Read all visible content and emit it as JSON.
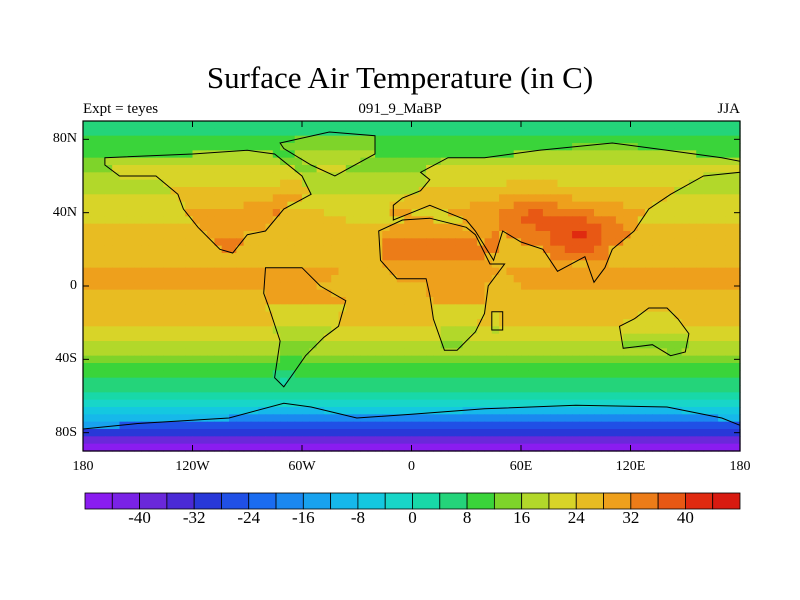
{
  "title": "Surface Air Temperature (in C)",
  "subtitle_left": "Expt = teyes",
  "subtitle_center": "091_9_MaBP",
  "subtitle_right": "JJA",
  "chart_data": {
    "type": "heatmap",
    "projection": "cylindrical-equidistant",
    "xlim": [
      -180,
      180
    ],
    "ylim": [
      -90,
      90
    ],
    "x_ticks": [
      {
        "value": -180,
        "label": "180"
      },
      {
        "value": -120,
        "label": "120W"
      },
      {
        "value": -60,
        "label": "60W"
      },
      {
        "value": 0,
        "label": "0"
      },
      {
        "value": 60,
        "label": "60E"
      },
      {
        "value": 120,
        "label": "120E"
      },
      {
        "value": 180,
        "label": "180"
      }
    ],
    "y_ticks": [
      {
        "value": 80,
        "label": "80N"
      },
      {
        "value": 40,
        "label": "40N"
      },
      {
        "value": 0,
        "label": "0"
      },
      {
        "value": -40,
        "label": "40S"
      },
      {
        "value": -80,
        "label": "80S"
      }
    ],
    "zonal_profile_lat": [
      90,
      80,
      70,
      60,
      50,
      40,
      30,
      20,
      10,
      0,
      -10,
      -20,
      -30,
      -40,
      -50,
      -60,
      -70,
      -80,
      -90
    ],
    "zonal_profile_temp_c": [
      4,
      8,
      12,
      16,
      20,
      23,
      25,
      27,
      28,
      28,
      27,
      25,
      20,
      14,
      8,
      2,
      -6,
      -20,
      -34
    ],
    "hotspots": [
      {
        "lon": 92,
        "lat": 30,
        "temp_c": 38
      },
      {
        "lon": 65,
        "lat": 40,
        "temp_c": 34
      },
      {
        "lon": -60,
        "lat": 40,
        "temp_c": 33
      },
      {
        "lon": 10,
        "lat": 0,
        "temp_c": 31
      }
    ],
    "colorbar": {
      "levels": [
        -44,
        -40,
        -36,
        -32,
        -28,
        -24,
        -20,
        -16,
        -12,
        -8,
        -4,
        0,
        4,
        8,
        12,
        16,
        20,
        24,
        28,
        32,
        36,
        40,
        44
      ],
      "labeled_ticks": [
        "-40",
        "-32",
        "-24",
        "-16",
        "-8",
        "0",
        "8",
        "16",
        "24",
        "32",
        "40"
      ],
      "colors": [
        "#8a1cf0",
        "#7a22e6",
        "#6a28da",
        "#4a2ad6",
        "#2838d8",
        "#2050e6",
        "#1a6cf0",
        "#1a88f0",
        "#18a2ee",
        "#16b8ea",
        "#14c8e0",
        "#18d6c8",
        "#18d8a8",
        "#24d47a",
        "#3ad43a",
        "#7ed42a",
        "#b2d82a",
        "#d8d428",
        "#e8bc22",
        "#eea01c",
        "#ec7c18",
        "#e85814",
        "#e02a10",
        "#d81a10"
      ]
    },
    "landmasses": [
      {
        "name": "North America",
        "polygon": [
          [
            -168,
            70
          ],
          [
            -120,
            72
          ],
          [
            -90,
            74
          ],
          [
            -75,
            72
          ],
          [
            -60,
            60
          ],
          [
            -55,
            50
          ],
          [
            -70,
            42
          ],
          [
            -80,
            30
          ],
          [
            -90,
            28
          ],
          [
            -98,
            18
          ],
          [
            -105,
            20
          ],
          [
            -117,
            32
          ],
          [
            -125,
            42
          ],
          [
            -128,
            50
          ],
          [
            -140,
            60
          ],
          [
            -160,
            60
          ],
          [
            -168,
            66
          ]
        ]
      },
      {
        "name": "Greenland",
        "polygon": [
          [
            -72,
            78
          ],
          [
            -45,
            84
          ],
          [
            -20,
            82
          ],
          [
            -20,
            72
          ],
          [
            -42,
            60
          ],
          [
            -55,
            66
          ],
          [
            -70,
            75
          ]
        ]
      },
      {
        "name": "South America",
        "polygon": [
          [
            -80,
            10
          ],
          [
            -60,
            10
          ],
          [
            -50,
            0
          ],
          [
            -36,
            -8
          ],
          [
            -40,
            -22
          ],
          [
            -48,
            -28
          ],
          [
            -58,
            -38
          ],
          [
            -65,
            -48
          ],
          [
            -70,
            -55
          ],
          [
            -75,
            -50
          ],
          [
            -72,
            -30
          ],
          [
            -78,
            -12
          ],
          [
            -81,
            -4
          ]
        ]
      },
      {
        "name": "Africa",
        "polygon": [
          [
            -18,
            30
          ],
          [
            -5,
            36
          ],
          [
            10,
            37
          ],
          [
            30,
            32
          ],
          [
            35,
            28
          ],
          [
            43,
            12
          ],
          [
            51,
            12
          ],
          [
            42,
            0
          ],
          [
            40,
            -15
          ],
          [
            35,
            -25
          ],
          [
            25,
            -35
          ],
          [
            18,
            -35
          ],
          [
            12,
            -18
          ],
          [
            10,
            -5
          ],
          [
            8,
            4
          ],
          [
            -8,
            4
          ],
          [
            -17,
            14
          ]
        ]
      },
      {
        "name": "Eurasia",
        "polygon": [
          [
            -10,
            36
          ],
          [
            -10,
            44
          ],
          [
            -5,
            48
          ],
          [
            5,
            52
          ],
          [
            10,
            58
          ],
          [
            5,
            62
          ],
          [
            20,
            70
          ],
          [
            40,
            70
          ],
          [
            70,
            74
          ],
          [
            110,
            78
          ],
          [
            140,
            74
          ],
          [
            170,
            70
          ],
          [
            180,
            68
          ],
          [
            180,
            62
          ],
          [
            160,
            60
          ],
          [
            142,
            50
          ],
          [
            130,
            42
          ],
          [
            122,
            30
          ],
          [
            110,
            20
          ],
          [
            106,
            10
          ],
          [
            100,
            2
          ],
          [
            95,
            16
          ],
          [
            80,
            8
          ],
          [
            72,
            20
          ],
          [
            60,
            24
          ],
          [
            50,
            30
          ],
          [
            45,
            14
          ],
          [
            35,
            30
          ],
          [
            30,
            36
          ],
          [
            20,
            40
          ],
          [
            10,
            44
          ],
          [
            0,
            40
          ]
        ]
      },
      {
        "name": "Australia",
        "polygon": [
          [
            114,
            -22
          ],
          [
            122,
            -18
          ],
          [
            130,
            -12
          ],
          [
            140,
            -12
          ],
          [
            146,
            -18
          ],
          [
            152,
            -26
          ],
          [
            150,
            -36
          ],
          [
            142,
            -38
          ],
          [
            132,
            -32
          ],
          [
            116,
            -34
          ]
        ]
      },
      {
        "name": "Madagascar",
        "polygon": [
          [
            44,
            -14
          ],
          [
            50,
            -14
          ],
          [
            50,
            -24
          ],
          [
            44,
            -24
          ]
        ]
      },
      {
        "name": "Antarctica",
        "polygon": [
          [
            -180,
            -78
          ],
          [
            -150,
            -75
          ],
          [
            -100,
            -72
          ],
          [
            -70,
            -64
          ],
          [
            -55,
            -66
          ],
          [
            -30,
            -72
          ],
          [
            0,
            -70
          ],
          [
            40,
            -67
          ],
          [
            90,
            -65
          ],
          [
            140,
            -66
          ],
          [
            170,
            -72
          ],
          [
            180,
            -76
          ],
          [
            180,
            -90
          ],
          [
            -180,
            -90
          ]
        ]
      }
    ]
  }
}
